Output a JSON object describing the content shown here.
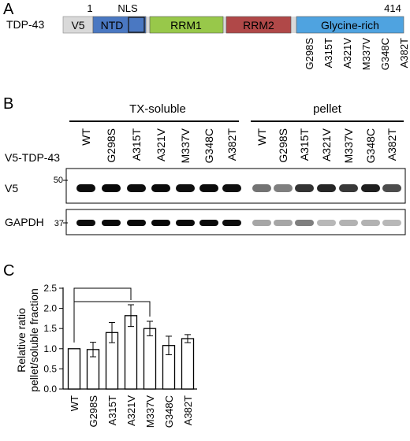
{
  "figure": {
    "panel_a": {
      "letter": "A",
      "protein_label": "TDP-43",
      "start_number": "1",
      "end_number": "414",
      "nls_label": "NLS",
      "domains": [
        {
          "label": "V5",
          "color": "#d9d9d9"
        },
        {
          "label": "NTD",
          "color": "#4a78c2"
        },
        {
          "label": "RRM1",
          "color": "#98c84a"
        },
        {
          "label": "RRM2",
          "color": "#b04848"
        },
        {
          "label": "Glycine-rich",
          "color": "#4fa3e0"
        }
      ],
      "mutations": [
        "G298S",
        "A315T",
        "A321V",
        "M337V",
        "G348C",
        "A382T"
      ]
    },
    "panel_b": {
      "letter": "B",
      "group_soluble": "TX-soluble",
      "group_pellet": "pellet",
      "row_label": "V5-TDP-43",
      "lanes": [
        "WT",
        "G298S",
        "A315T",
        "A321V",
        "M337V",
        "G348C",
        "A382T"
      ],
      "blot_v5": {
        "label": "V5",
        "marker": "50",
        "soluble_intensity": [
          0.95,
          0.97,
          0.95,
          0.96,
          0.94,
          0.96,
          0.94
        ],
        "pellet_intensity": [
          0.55,
          0.5,
          0.8,
          0.85,
          0.78,
          0.88,
          0.7
        ]
      },
      "blot_gapdh": {
        "label": "GAPDH",
        "marker": "37",
        "soluble_intensity": [
          0.95,
          0.96,
          0.96,
          0.97,
          0.96,
          0.96,
          0.95
        ],
        "pellet_intensity": [
          0.35,
          0.35,
          0.5,
          0.28,
          0.3,
          0.3,
          0.28
        ]
      }
    },
    "panel_c": {
      "letter": "C"
    }
  },
  "chart_data": {
    "type": "bar",
    "title": "",
    "xlabel": "",
    "ylabel": "Relative ratio pellet/soluble fraction",
    "ylabel_lines": [
      "Relative ratio",
      "pellet/soluble fraction"
    ],
    "categories": [
      "WT",
      "G298S",
      "A315T",
      "A321V",
      "M337V",
      "G348C",
      "A382T"
    ],
    "values": [
      1.0,
      0.98,
      1.4,
      1.82,
      1.5,
      1.08,
      1.25
    ],
    "errors": [
      0.0,
      0.18,
      0.25,
      0.27,
      0.18,
      0.23,
      0.1
    ],
    "ylim": [
      0,
      2.5
    ],
    "yticks": [
      "0.0",
      "0.5",
      "1.0",
      "1.5",
      "2.0",
      "2.5"
    ],
    "significance_brackets": [
      [
        "WT",
        "A321V"
      ],
      [
        "WT",
        "M337V"
      ]
    ],
    "bar_color": "#ffffff",
    "edge_color": "#000000"
  }
}
